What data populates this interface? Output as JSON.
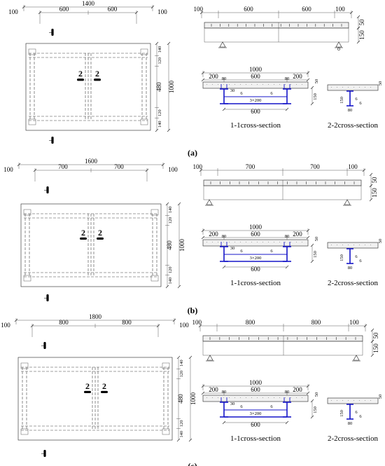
{
  "panels": [
    {
      "label": "(a)",
      "span_total": "1400",
      "span_left": "600",
      "span_right": "600",
      "edge_left": "100",
      "edge_right": "100",
      "width": "1000",
      "width_inner": "480",
      "edge_top_a": "140",
      "edge_top_b": "120",
      "edge_bot_a": "120",
      "edge_bot_b": "140",
      "cut_mark": "2",
      "elev_top": "50",
      "elev_bot": "150",
      "sec1": {
        "total": "1000",
        "left": "200",
        "mid": "600",
        "right": "200",
        "stiff_l": "80",
        "stiff_r": "80",
        "rebar": "3×200",
        "bottom": "600",
        "depth": "150",
        "weld": "6",
        "cover": "50",
        "angle": "30"
      },
      "sec2": {
        "depth": "150",
        "top": "50",
        "weld": "6",
        "stiff": "80"
      },
      "caption_1": "1-1cross-section",
      "caption_2": "2-2cross-section"
    },
    {
      "label": "(b)",
      "span_total": "1600",
      "span_left": "700",
      "span_right": "700",
      "edge_left": "100",
      "edge_right": "100",
      "width": "1000",
      "width_inner": "480",
      "edge_top_a": "140",
      "edge_top_b": "120",
      "edge_bot_a": "120",
      "edge_bot_b": "140",
      "cut_mark": "2",
      "elev_top": "50",
      "elev_bot": "150",
      "sec1": {
        "total": "1000",
        "left": "200",
        "mid": "600",
        "right": "200",
        "stiff_l": "80",
        "stiff_r": "80",
        "rebar": "3×200",
        "bottom": "600",
        "depth": "150",
        "weld": "6",
        "cover": "50",
        "angle": "30"
      },
      "sec2": {
        "depth": "150",
        "top": "50",
        "weld": "6",
        "stiff": "80"
      },
      "caption_1": "1-1cross-section",
      "caption_2": "2-2cross-section"
    },
    {
      "label": "(c)",
      "span_total": "1800",
      "span_left": "800",
      "span_right": "800",
      "edge_left": "100",
      "edge_right": "100",
      "width": "1000",
      "width_inner": "480",
      "edge_top_a": "140",
      "edge_top_b": "120",
      "edge_bot_a": "120",
      "edge_bot_b": "140",
      "cut_mark": "2",
      "elev_top": "50",
      "elev_bot": "150",
      "sec1": {
        "total": "1000",
        "left": "200",
        "mid": "600",
        "right": "200",
        "stiff_l": "80",
        "stiff_r": "80",
        "rebar": "3×200",
        "bottom": "600",
        "depth": "150",
        "weld": "6",
        "cover": "50",
        "angle": "30"
      },
      "sec2": {
        "depth": "150",
        "top": "50",
        "weld": "6",
        "stiff": "80"
      },
      "caption_1": "1-1cross-section",
      "caption_2": "2-2cross-section"
    }
  ]
}
